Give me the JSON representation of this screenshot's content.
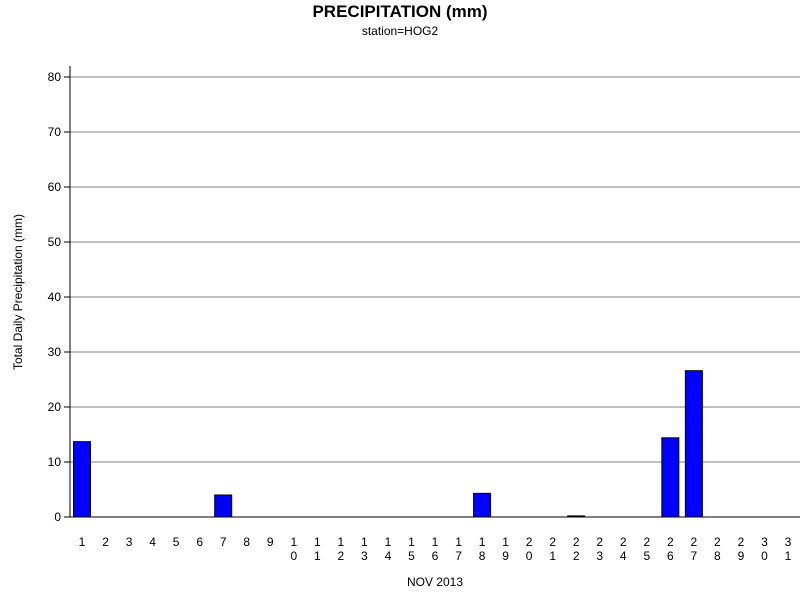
{
  "chart_data": {
    "type": "bar",
    "title": "PRECIPITATION (mm)",
    "subtitle": "station=HOG2",
    "xlabel": "NOV 2013",
    "ylabel": "Total Daily Precipitation (mm)",
    "ylim": [
      0,
      80
    ],
    "yticks": [
      "0",
      "10",
      "20",
      "30",
      "40",
      "50",
      "60",
      "70",
      "80"
    ],
    "categories": [
      "1",
      "2",
      "3",
      "4",
      "5",
      "6",
      "7",
      "8",
      "9",
      "10",
      "11",
      "12",
      "13",
      "14",
      "15",
      "16",
      "17",
      "18",
      "19",
      "20",
      "21",
      "22",
      "23",
      "24",
      "25",
      "26",
      "27",
      "28",
      "29",
      "30",
      "31"
    ],
    "values": [
      13.7,
      0,
      0,
      0,
      0,
      0,
      4.0,
      0,
      0,
      0,
      0,
      0,
      0,
      0,
      0,
      0,
      0,
      4.3,
      0,
      0,
      0,
      0.2,
      0,
      0,
      0,
      14.4,
      26.6,
      0,
      0,
      0,
      0
    ],
    "bar_color": "#0000ff",
    "grid": true
  }
}
